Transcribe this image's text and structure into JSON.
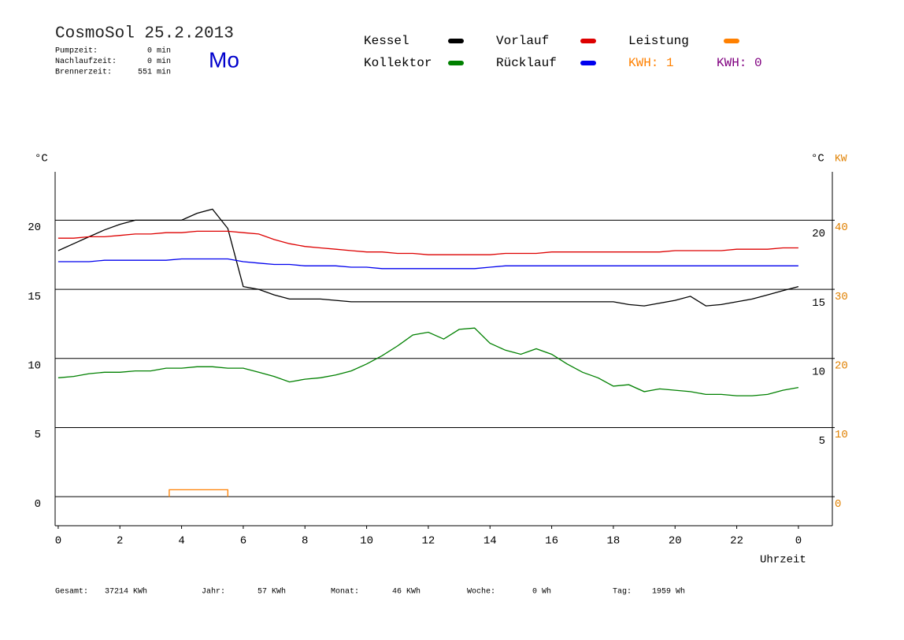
{
  "chart_data": {
    "type": "line",
    "title": "CosmoSol 25.2.2013",
    "stats": [
      {
        "label": "Pumpzeit:",
        "value": "0 min"
      },
      {
        "label": "Nachlaufzeit:",
        "value": "0 min"
      },
      {
        "label": "Brennerzeit:",
        "value": "551 min"
      }
    ],
    "day": "Mo",
    "kwh": [
      {
        "text": "KWH: 1",
        "color": "#ff8000"
      },
      {
        "text": "KWH: 0",
        "color": "#800080"
      }
    ],
    "y_label": "°C",
    "y2_label_inner": "°C",
    "y2_label": "KW",
    "x_label": "Uhrzeit",
    "x": [
      0,
      0.5,
      1,
      1.5,
      2,
      2.5,
      3,
      3.5,
      4,
      4.5,
      5,
      5.5,
      6,
      6.5,
      7,
      7.5,
      8,
      8.5,
      9,
      9.5,
      10,
      10.5,
      11,
      11.5,
      12,
      12.5,
      13,
      13.5,
      14,
      14.5,
      15,
      15.5,
      16,
      16.5,
      17,
      17.5,
      18,
      18.5,
      19,
      19.5,
      20,
      20.5,
      21,
      21.5,
      22,
      22.5,
      23,
      23.5,
      24
    ],
    "series": [
      {
        "name": "Kessel",
        "color": "#000000",
        "values": [
          17.8,
          18.3,
          18.8,
          19.3,
          19.7,
          20.0,
          20.0,
          20.0,
          20.0,
          20.5,
          20.8,
          19.4,
          15.2,
          15.0,
          14.6,
          14.3,
          14.3,
          14.3,
          14.2,
          14.1,
          14.1,
          14.1,
          14.1,
          14.1,
          14.1,
          14.1,
          14.1,
          14.1,
          14.1,
          14.1,
          14.1,
          14.1,
          14.1,
          14.1,
          14.1,
          14.1,
          14.1,
          13.9,
          13.8,
          14.0,
          14.2,
          14.5,
          13.8,
          13.9,
          14.1,
          14.3,
          14.6,
          14.9,
          15.2
        ]
      },
      {
        "name": "Kollektor",
        "color": "#008000",
        "values": [
          8.6,
          8.7,
          8.9,
          9.0,
          9.0,
          9.1,
          9.1,
          9.3,
          9.3,
          9.4,
          9.4,
          9.3,
          9.3,
          9.0,
          8.7,
          8.3,
          8.5,
          8.6,
          8.8,
          9.1,
          9.6,
          10.2,
          10.9,
          11.7,
          11.9,
          11.4,
          12.1,
          12.2,
          11.1,
          10.6,
          10.3,
          10.7,
          10.3,
          9.6,
          9.0,
          8.6,
          8.0,
          8.1,
          7.6,
          7.8,
          7.7,
          7.6,
          7.4,
          7.4,
          7.3,
          7.3,
          7.4,
          7.7,
          7.9
        ]
      },
      {
        "name": "Vorlauf",
        "color": "#dd0000",
        "values": [
          18.7,
          18.7,
          18.8,
          18.8,
          18.9,
          19.0,
          19.0,
          19.1,
          19.1,
          19.2,
          19.2,
          19.2,
          19.1,
          19.0,
          18.6,
          18.3,
          18.1,
          18.0,
          17.9,
          17.8,
          17.7,
          17.7,
          17.6,
          17.6,
          17.5,
          17.5,
          17.5,
          17.5,
          17.5,
          17.6,
          17.6,
          17.6,
          17.7,
          17.7,
          17.7,
          17.7,
          17.7,
          17.7,
          17.7,
          17.7,
          17.8,
          17.8,
          17.8,
          17.8,
          17.9,
          17.9,
          17.9,
          18.0,
          18.0
        ]
      },
      {
        "name": "Rücklauf",
        "color": "#0000ee",
        "values": [
          17.0,
          17.0,
          17.0,
          17.1,
          17.1,
          17.1,
          17.1,
          17.1,
          17.2,
          17.2,
          17.2,
          17.2,
          17.0,
          16.9,
          16.8,
          16.8,
          16.7,
          16.7,
          16.7,
          16.6,
          16.6,
          16.5,
          16.5,
          16.5,
          16.5,
          16.5,
          16.5,
          16.5,
          16.6,
          16.7,
          16.7,
          16.7,
          16.7,
          16.7,
          16.7,
          16.7,
          16.7,
          16.7,
          16.7,
          16.7,
          16.7,
          16.7,
          16.7,
          16.7,
          16.7,
          16.7,
          16.7,
          16.7,
          16.7
        ]
      },
      {
        "name": "Leistung",
        "color": "#ff8000",
        "axis": "y2",
        "x": [
          3.6,
          3.6,
          5.5,
          5.5
        ],
        "values": [
          0,
          1,
          1,
          0
        ]
      }
    ],
    "xlim": [
      -0.1,
      25.1
    ],
    "xticks": [
      0,
      2,
      4,
      6,
      8,
      10,
      12,
      14,
      16,
      18,
      20,
      22,
      {
        "value": 24,
        "label": "0"
      }
    ],
    "ylim": [
      -2.1,
      23.5
    ],
    "yticks": [
      0,
      5,
      10,
      15,
      20
    ],
    "yticks_right": [
      5,
      10,
      15,
      20
    ],
    "y2lim": [
      -4.2,
      47
    ],
    "y2ticks": [
      0,
      10,
      20,
      30,
      40
    ],
    "y2_color": "#e08000",
    "grid": true,
    "footer": [
      {
        "label": "Gesamt:",
        "value": "37214 KWh"
      },
      {
        "label": "Jahr:",
        "value": "57 KWh"
      },
      {
        "label": "Monat:",
        "value": "46 KWh"
      },
      {
        "label": "Woche:",
        "value": "0 Wh"
      },
      {
        "label": "Tag:",
        "value": "1959 Wh"
      }
    ]
  }
}
